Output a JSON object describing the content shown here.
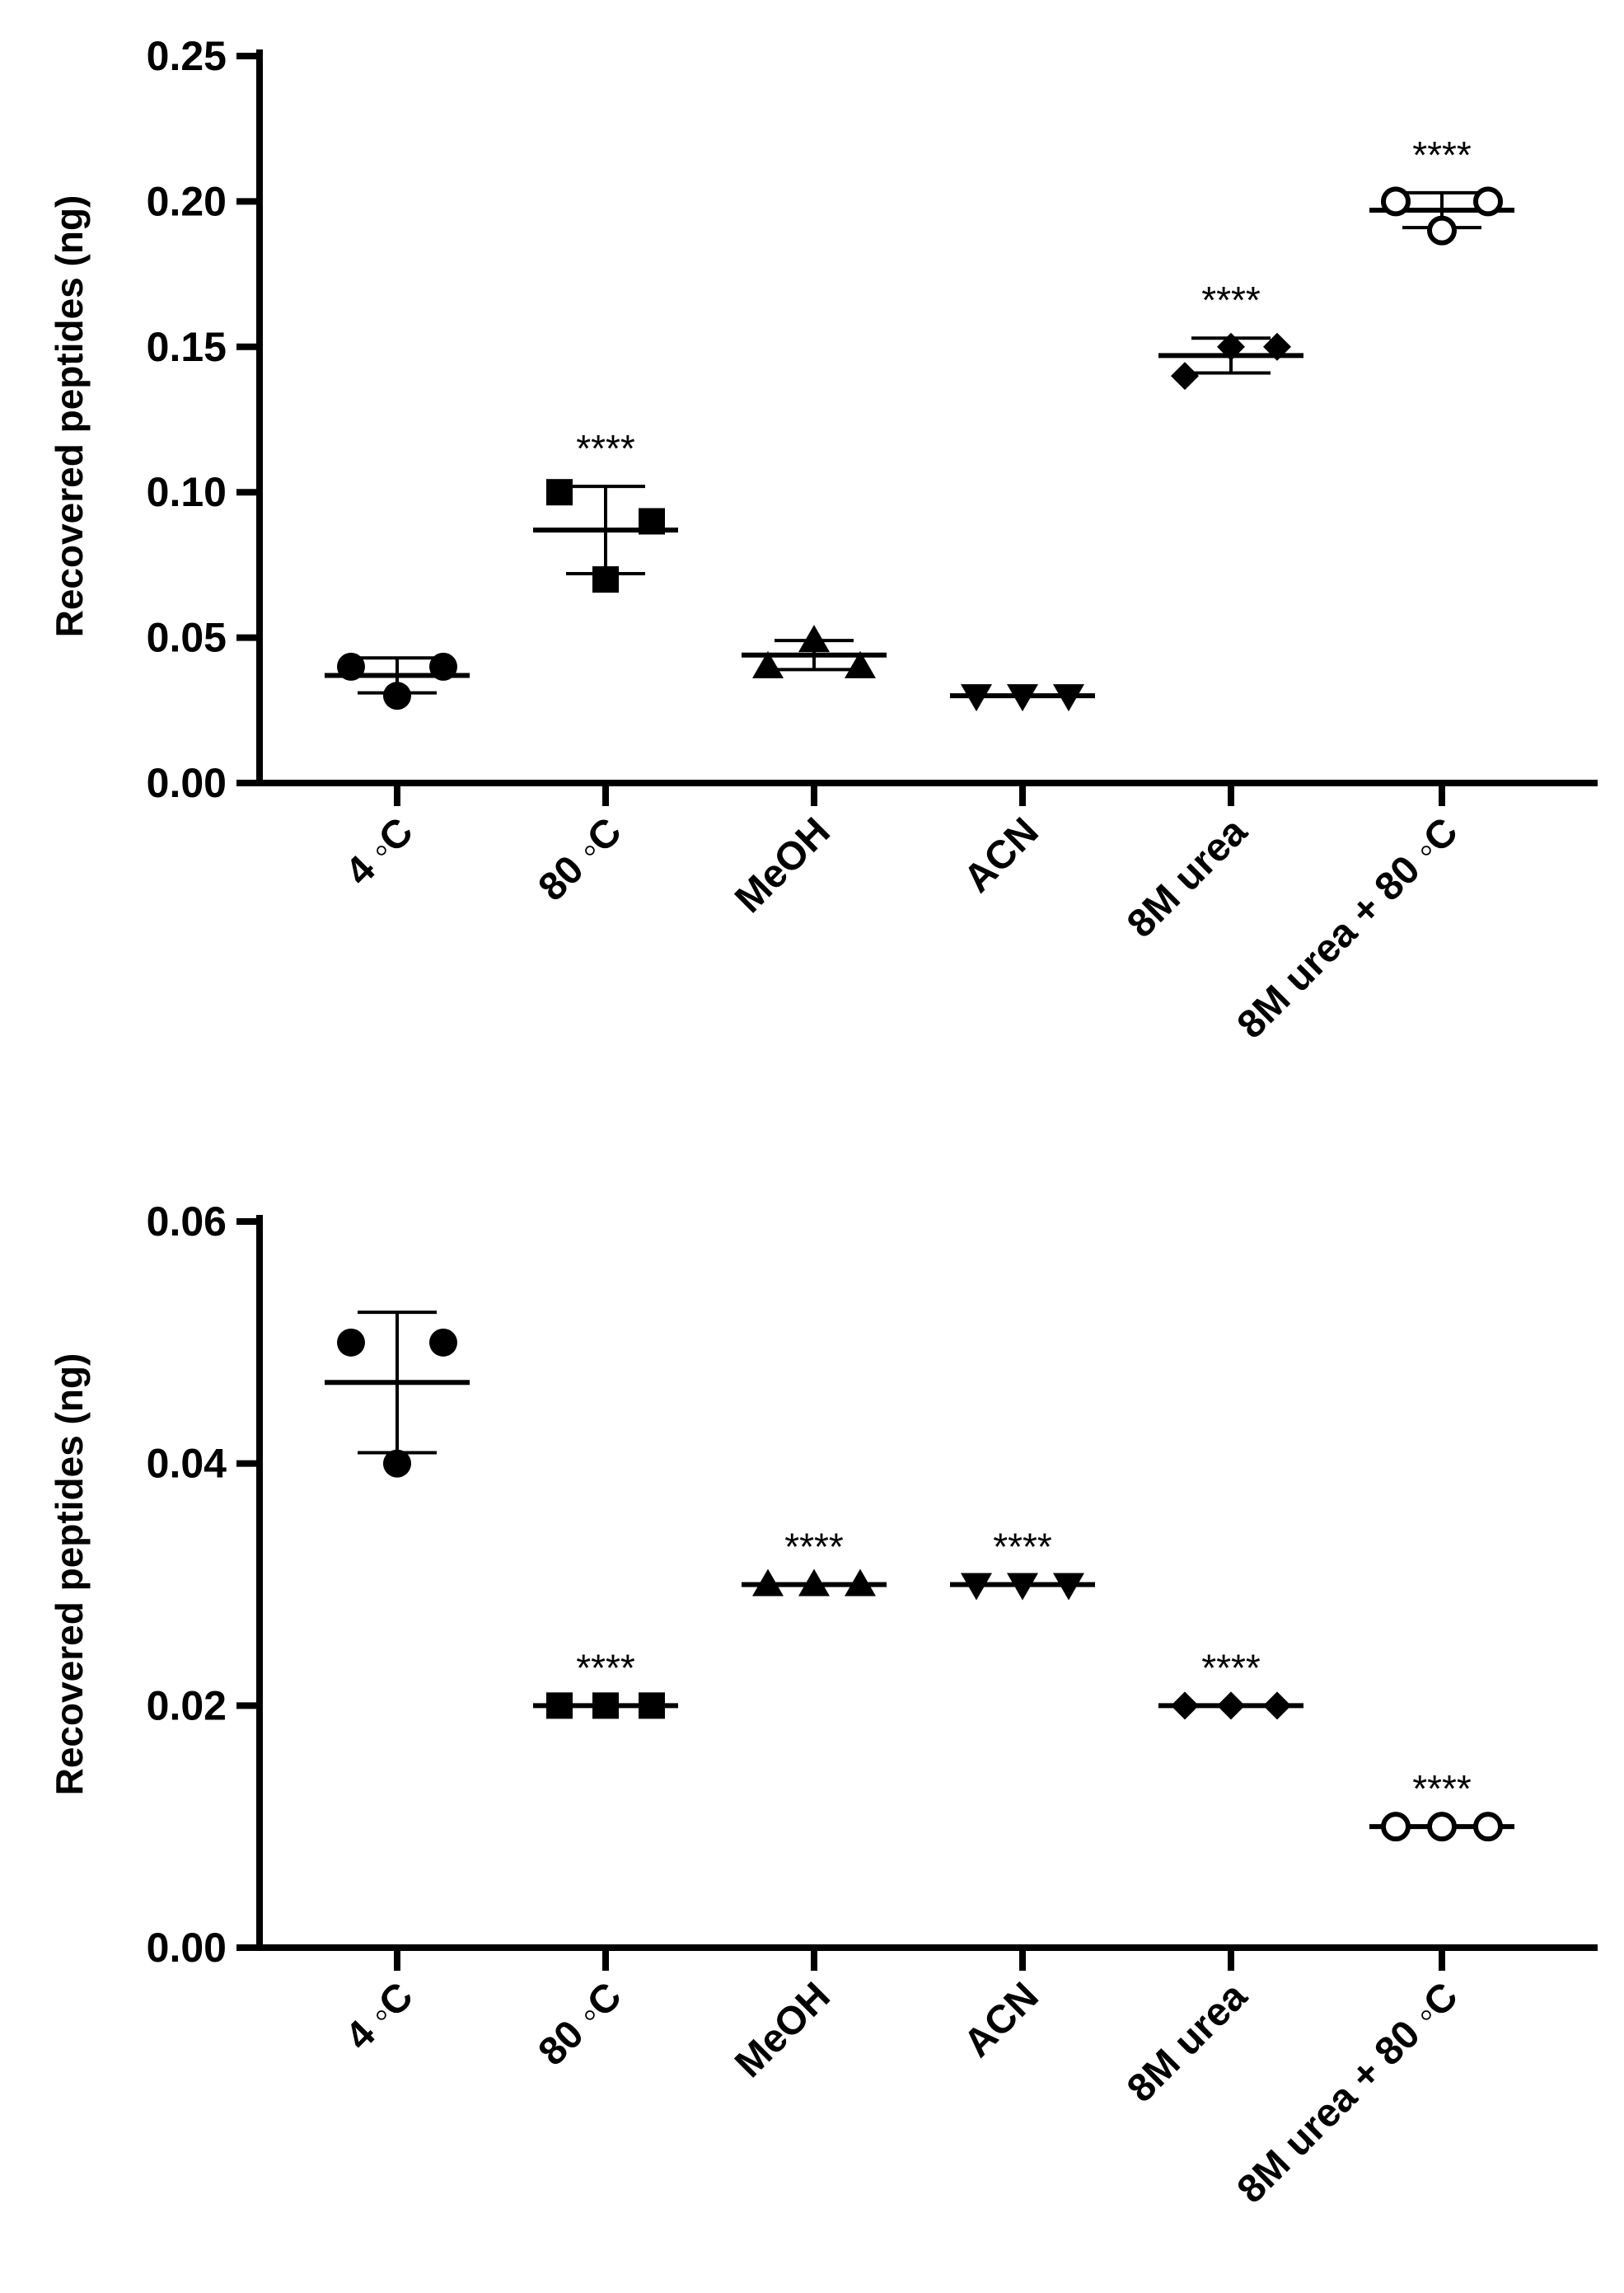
{
  "chart_data": [
    {
      "type": "scatter",
      "title": "",
      "ylabel": "Recovered peptides (ng)",
      "xlabel": "",
      "ylim": [
        0,
        0.25
      ],
      "yticks": [
        "0.00",
        "0.05",
        "0.10",
        "0.15",
        "0.20",
        "0.25"
      ],
      "categories": [
        "4 ◦C",
        "80 ◦C",
        "MeOH",
        "ACN",
        "8M urea",
        "8M urea + 80 ◦C"
      ],
      "series": [
        {
          "name": "4 ◦C",
          "marker": "circle",
          "points": [
            0.04,
            0.03,
            0.04
          ],
          "mean": 0.037,
          "sd": 0.006,
          "sig": ""
        },
        {
          "name": "80 ◦C",
          "marker": "square",
          "points": [
            0.1,
            0.07,
            0.09
          ],
          "mean": 0.087,
          "sd": 0.015,
          "sig": "****"
        },
        {
          "name": "MeOH",
          "marker": "triangle-up",
          "points": [
            0.04,
            0.049,
            0.04
          ],
          "mean": 0.044,
          "sd": 0.005,
          "sig": ""
        },
        {
          "name": "ACN",
          "marker": "triangle-down",
          "points": [
            0.03,
            0.03,
            0.03
          ],
          "mean": 0.03,
          "sd": 0.0,
          "sig": ""
        },
        {
          "name": "8M urea",
          "marker": "diamond",
          "points": [
            0.14,
            0.15,
            0.15
          ],
          "mean": 0.147,
          "sd": 0.006,
          "sig": "****"
        },
        {
          "name": "8M urea + 80 ◦C",
          "marker": "open-circle",
          "points": [
            0.2,
            0.19,
            0.2
          ],
          "mean": 0.197,
          "sd": 0.006,
          "sig": "****"
        }
      ]
    },
    {
      "type": "scatter",
      "title": "",
      "ylabel": "Recovered peptides (ng)",
      "xlabel": "",
      "ylim": [
        0,
        0.06
      ],
      "yticks": [
        "0.00",
        "0.02",
        "0.04",
        "0.06"
      ],
      "categories": [
        "4 ◦C",
        "80 ◦C",
        "MeOH",
        "ACN",
        "8M urea",
        "8M urea + 80 ◦C"
      ],
      "series": [
        {
          "name": "4 ◦C",
          "marker": "circle",
          "points": [
            0.05,
            0.04,
            0.05
          ],
          "mean": 0.0467,
          "sd": 0.0058,
          "sig": ""
        },
        {
          "name": "80 ◦C",
          "marker": "square",
          "points": [
            0.02,
            0.02,
            0.02
          ],
          "mean": 0.02,
          "sd": 0.0,
          "sig": "****"
        },
        {
          "name": "MeOH",
          "marker": "triangle-up",
          "points": [
            0.03,
            0.03,
            0.03
          ],
          "mean": 0.03,
          "sd": 0.0,
          "sig": "****"
        },
        {
          "name": "ACN",
          "marker": "triangle-down",
          "points": [
            0.03,
            0.03,
            0.03
          ],
          "mean": 0.03,
          "sd": 0.0,
          "sig": "****"
        },
        {
          "name": "8M urea",
          "marker": "diamond",
          "points": [
            0.02,
            0.02,
            0.02
          ],
          "mean": 0.02,
          "sd": 0.0,
          "sig": "****"
        },
        {
          "name": "8M urea + 80 ◦C",
          "marker": "open-circle",
          "points": [
            0.01,
            0.01,
            0.01
          ],
          "mean": 0.01,
          "sd": 0.0,
          "sig": "****"
        }
      ]
    }
  ]
}
